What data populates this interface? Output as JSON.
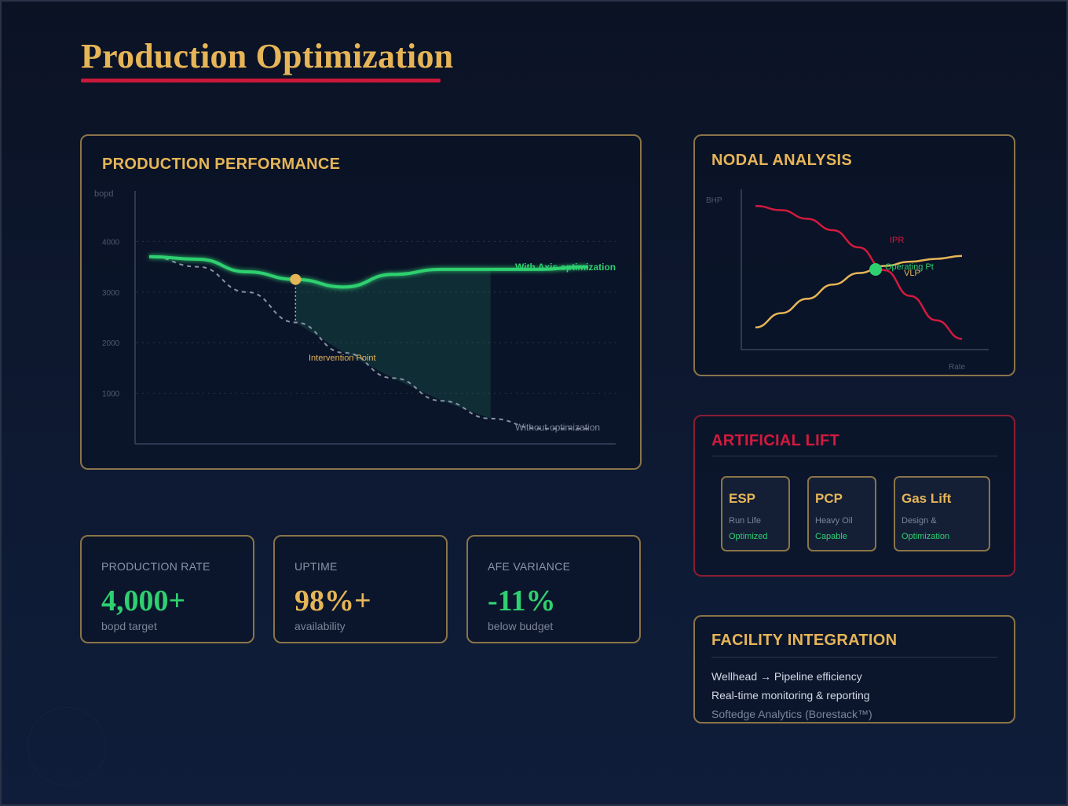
{
  "page": {
    "title": "Production Optimization"
  },
  "colors": {
    "gold": "#e6b557",
    "green": "#2fd070",
    "red": "#d21a3e",
    "muted": "#7c8499"
  },
  "performance": {
    "title": "PRODUCTION PERFORMANCE",
    "with_label": "With Axis optimization",
    "without_label": "Without optimization",
    "intervention_label": "Intervention Point"
  },
  "nodal": {
    "title": "NODAL ANALYSIS",
    "ipr_label": "IPR",
    "vlp_label": "VLP",
    "operating_point_label": "Operating Pt"
  },
  "lift": {
    "title": "ARTIFICIAL LIFT",
    "cards": [
      {
        "title": "ESP",
        "sub": "Run Life",
        "tag": "Optimized"
      },
      {
        "title": "PCP",
        "sub": "Heavy Oil",
        "tag": "Capable"
      },
      {
        "title": "Gas Lift",
        "sub": "Design &",
        "tag": "Optimization"
      }
    ]
  },
  "kpis": [
    {
      "label": "PRODUCTION RATE",
      "value": "4,000+",
      "sub": "bopd target",
      "color": "#2fd070"
    },
    {
      "label": "UPTIME",
      "value": "98%+",
      "sub": "availability",
      "color": "#e6b557"
    },
    {
      "label": "AFE VARIANCE",
      "value": "-11%",
      "sub": "below budget",
      "color": "#2fd070"
    }
  ],
  "facility": {
    "title": "FACILITY INTEGRATION",
    "lines": [
      "Wellhead → Pipeline efficiency",
      "Real-time monitoring & reporting",
      "Softedge Analytics (Borestack™)"
    ]
  },
  "chart_data": [
    {
      "type": "line",
      "title": "PRODUCTION PERFORMANCE",
      "ylabel": "bopd",
      "ylim": [
        0,
        5000
      ],
      "yticks": [
        1000,
        2000,
        3000,
        4000
      ],
      "x": [
        0,
        1,
        2,
        3,
        4,
        5,
        6,
        7,
        8,
        9
      ],
      "series": [
        {
          "name": "With Axis optimization",
          "values": [
            3700,
            3650,
            3400,
            3250,
            3100,
            3350,
            3450,
            3450,
            3450,
            3500
          ]
        },
        {
          "name": "Without optimization",
          "values": [
            3700,
            3500,
            3000,
            2400,
            1800,
            1300,
            850,
            500,
            300,
            300
          ]
        }
      ],
      "annotations": [
        "Intervention Point"
      ],
      "grid": true
    },
    {
      "type": "line",
      "title": "NODAL ANALYSIS",
      "xlabel": "Rate",
      "ylabel": "BHP",
      "x": [
        0,
        1,
        2,
        3,
        4,
        5,
        6,
        7,
        8
      ],
      "series": [
        {
          "name": "IPR",
          "values": [
            0.95,
            0.92,
            0.86,
            0.78,
            0.66,
            0.5,
            0.32,
            0.15,
            0.02
          ]
        },
        {
          "name": "VLP",
          "values": [
            0.1,
            0.2,
            0.3,
            0.4,
            0.48,
            0.53,
            0.56,
            0.58,
            0.6
          ]
        }
      ]
    }
  ]
}
